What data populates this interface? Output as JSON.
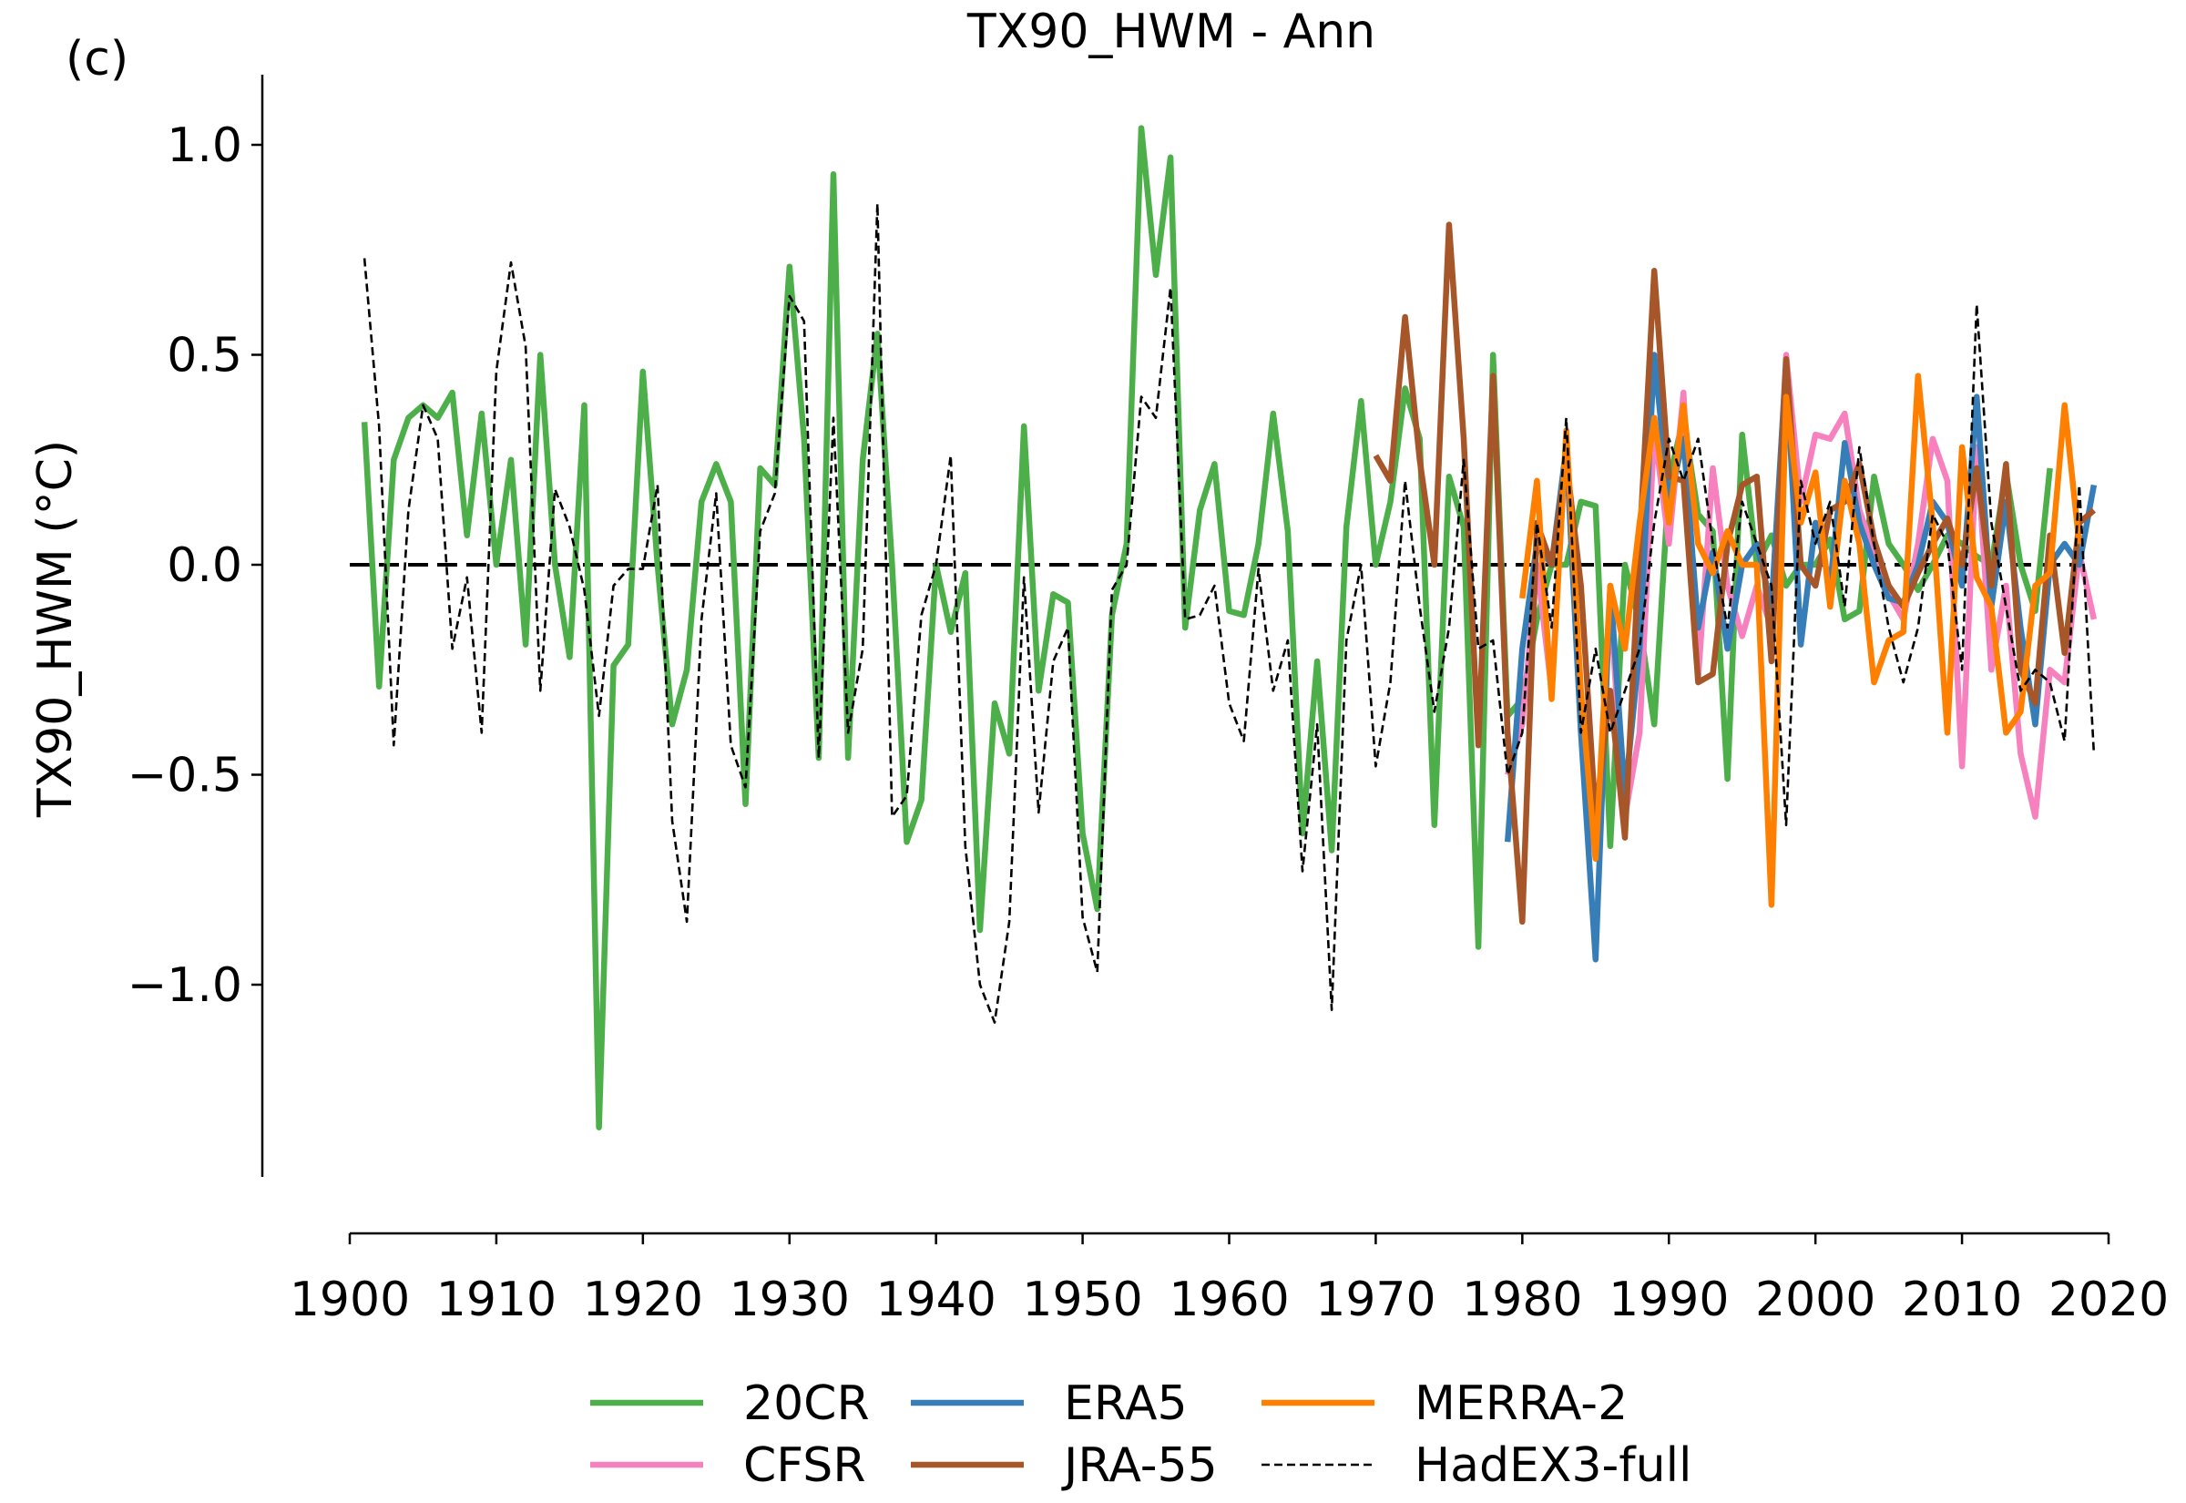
{
  "panel_label": "(c)",
  "chart_data": {
    "type": "line",
    "title": "TX90_HWM - Ann",
    "xlabel": "",
    "ylabel": "TX90_HWM (°C)",
    "xlim": [
      1900,
      2020
    ],
    "ylim": [
      -1.45,
      1.16
    ],
    "xticks": [
      1900,
      1910,
      1920,
      1930,
      1940,
      1950,
      1960,
      1970,
      1980,
      1990,
      2000,
      2010,
      2020
    ],
    "yticks": [
      1.0,
      0.5,
      0.0,
      -0.5,
      -1.0
    ],
    "ytick_labels": [
      "1.0",
      "0.5",
      "0.0",
      "−0.5",
      "−1.0"
    ],
    "reference_line": 0.0,
    "grid": false,
    "legend_placement": "bottom-center",
    "legend_columns": 3,
    "series": [
      {
        "name": "20CR",
        "color": "#4daf4a",
        "style": "solid",
        "start_year": 1901,
        "values": [
          0.34,
          -0.29,
          0.25,
          0.35,
          0.38,
          0.35,
          0.41,
          0.07,
          0.36,
          0.0,
          0.25,
          -0.19,
          0.5,
          0.0,
          -0.22,
          0.38,
          -1.34,
          -0.24,
          -0.19,
          0.46,
          0.0,
          -0.38,
          -0.25,
          0.15,
          0.24,
          0.15,
          -0.57,
          0.23,
          0.19,
          0.71,
          0.3,
          -0.46,
          0.93,
          -0.46,
          0.25,
          0.55,
          0.0,
          -0.66,
          -0.56,
          0.0,
          -0.16,
          -0.02,
          -0.87,
          -0.33,
          -0.45,
          0.33,
          -0.3,
          -0.07,
          -0.09,
          -0.64,
          -0.82,
          -0.12,
          0.05,
          1.04,
          0.69,
          0.97,
          -0.15,
          0.13,
          0.24,
          -0.11,
          -0.12,
          0.05,
          0.36,
          0.08,
          -0.64,
          -0.23,
          -0.68,
          0.09,
          0.39,
          0.0,
          0.15,
          0.42,
          0.3,
          -0.62,
          0.21,
          0.09,
          -0.91,
          0.5,
          -0.36,
          -0.32,
          -0.13,
          0.0,
          0.0,
          0.15,
          0.14,
          -0.67,
          0.0,
          -0.14,
          -0.38,
          0.2,
          0.35,
          0.12,
          0.08,
          -0.51,
          0.31,
          0.0,
          0.07,
          -0.05,
          0.0,
          0.0,
          0.06,
          -0.13,
          -0.11,
          0.21,
          0.05,
          0.0,
          -0.06,
          0.0,
          0.07,
          0.05,
          0.02,
          0.0,
          0.22,
          0.0,
          -0.11,
          0.23
        ]
      },
      {
        "name": "CFSR",
        "color": "#f781bf",
        "style": "solid",
        "start_year": 1979,
        "values": [
          -0.5,
          -0.38,
          0.0,
          -0.3,
          0.3,
          -0.4,
          -0.7,
          -0.1,
          -0.6,
          -0.4,
          0.32,
          0.05,
          0.41,
          -0.27,
          0.23,
          -0.05,
          -0.17,
          -0.05,
          -0.15,
          0.5,
          0.15,
          0.31,
          0.3,
          0.36,
          0.13,
          0.03,
          -0.07,
          -0.13,
          0.05,
          0.3,
          0.2,
          -0.48,
          0.28,
          -0.25,
          -0.05,
          -0.45,
          -0.6,
          -0.25,
          -0.28,
          0.03,
          -0.13
        ]
      },
      {
        "name": "ERA5",
        "color": "#377eb8",
        "style": "solid",
        "start_year": 1979,
        "values": [
          -0.66,
          -0.2,
          0.05,
          0.0,
          0.28,
          -0.4,
          -0.94,
          -0.05,
          -0.55,
          -0.2,
          0.5,
          0.15,
          0.3,
          -0.15,
          0.03,
          -0.2,
          0.0,
          0.05,
          -0.1,
          0.48,
          -0.19,
          0.1,
          -0.05,
          0.29,
          0.1,
          0.0,
          -0.08,
          -0.09,
          0.0,
          0.15,
          0.1,
          -0.05,
          0.4,
          -0.1,
          0.15,
          -0.15,
          -0.38,
          0.0,
          0.05,
          0.0,
          0.19
        ]
      },
      {
        "name": "JRA-55",
        "color": "#a65628",
        "style": "solid",
        "start_year": 1970,
        "values": [
          0.26,
          0.2,
          0.59,
          0.25,
          0.0,
          0.81,
          0.3,
          -0.43,
          0.45,
          -0.4,
          -0.85,
          0.1,
          0.0,
          0.25,
          -0.05,
          -0.6,
          -0.3,
          -0.65,
          0.05,
          0.7,
          0.21,
          0.2,
          -0.28,
          -0.26,
          0.05,
          0.19,
          0.21,
          -0.23,
          0.49,
          0.0,
          -0.05,
          0.13,
          0.15,
          0.24,
          0.06,
          -0.05,
          -0.1,
          -0.02,
          0.05,
          0.11,
          0.0,
          0.23,
          -0.05,
          0.24,
          -0.25,
          -0.33,
          0.07,
          -0.21,
          0.1,
          0.13
        ]
      },
      {
        "name": "MERRA-2",
        "color": "#ff7f00",
        "style": "solid",
        "start_year": 1980,
        "values": [
          -0.08,
          0.2,
          -0.32,
          0.32,
          -0.3,
          -0.7,
          -0.05,
          -0.2,
          0.1,
          0.35,
          0.1,
          0.38,
          0.05,
          -0.02,
          0.08,
          0.0,
          0.0,
          -0.81,
          0.4,
          0.1,
          0.22,
          -0.1,
          0.2,
          0.05,
          -0.28,
          -0.18,
          -0.16,
          0.45,
          0.1,
          -0.4,
          0.28,
          -0.03,
          -0.1,
          -0.4,
          -0.35,
          -0.05,
          -0.02,
          0.38,
          0.05
        ]
      },
      {
        "name": "HadEX3-full",
        "color": "#000000",
        "style": "dashed",
        "start_year": 1901,
        "values": [
          0.73,
          0.33,
          -0.43,
          0.13,
          0.38,
          0.3,
          -0.2,
          -0.03,
          -0.4,
          0.46,
          0.72,
          0.52,
          -0.3,
          0.18,
          0.09,
          -0.06,
          -0.36,
          -0.05,
          -0.01,
          -0.01,
          0.19,
          -0.61,
          -0.85,
          -0.13,
          0.17,
          -0.43,
          -0.53,
          0.08,
          0.17,
          0.64,
          0.58,
          -0.46,
          0.35,
          -0.4,
          -0.2,
          0.86,
          -0.6,
          -0.55,
          -0.12,
          0.0,
          0.26,
          -0.67,
          -1.0,
          -1.09,
          -0.85,
          -0.03,
          -0.59,
          -0.23,
          -0.15,
          -0.84,
          -0.97,
          -0.06,
          0.0,
          0.4,
          0.35,
          0.66,
          -0.13,
          -0.12,
          -0.05,
          -0.33,
          -0.42,
          -0.01,
          -0.3,
          -0.18,
          -0.73,
          -0.38,
          -1.06,
          -0.18,
          0.0,
          -0.48,
          -0.28,
          0.2,
          -0.1,
          -0.35,
          -0.15,
          0.25,
          -0.2,
          -0.18,
          -0.5,
          -0.4,
          0.1,
          -0.15,
          0.35,
          -0.4,
          -0.2,
          -0.4,
          -0.3,
          -0.2,
          0.1,
          0.3,
          0.2,
          0.3,
          0.05,
          -0.15,
          0.15,
          0.05,
          -0.05,
          -0.62,
          0.2,
          0.05,
          0.15,
          -0.1,
          0.28,
          0.05,
          -0.15,
          -0.28,
          -0.15,
          0.12,
          0.05,
          -0.25,
          0.62,
          0.1,
          -0.1,
          -0.3,
          -0.25,
          -0.28,
          -0.42,
          0.19,
          -0.45
        ]
      }
    ]
  }
}
